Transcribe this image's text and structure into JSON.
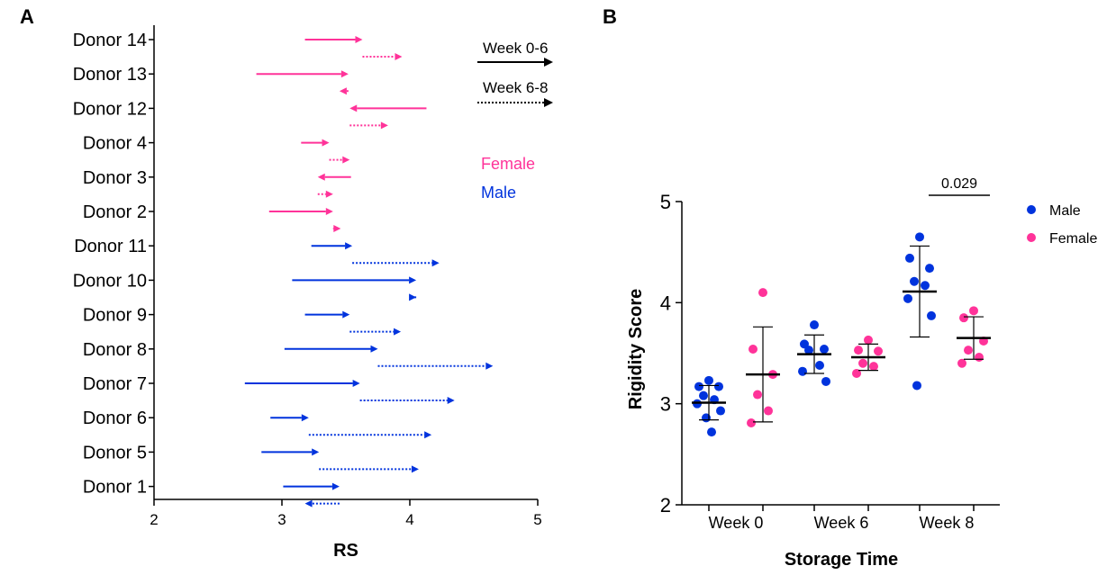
{
  "panels": {
    "a_letter": "A",
    "b_letter": "B"
  },
  "colors": {
    "female": "#ff3399",
    "male": "#0033dd",
    "black": "#000000"
  },
  "chart_data": [
    {
      "type": "arrow-plot",
      "xlabel": "RS",
      "xlim": [
        2,
        5
      ],
      "xticks": [
        "2",
        "3",
        "4",
        "5"
      ],
      "legend": {
        "arrow_solid": "Week 0-6",
        "arrow_dotted": "Week 6-8",
        "female": "Female",
        "male": "Male"
      },
      "donors": [
        {
          "name": "Donor 14",
          "sex": "female",
          "w0": 3.18,
          "w6": 3.63,
          "w8": 3.94
        },
        {
          "name": "Donor 13",
          "sex": "female",
          "w0": 2.8,
          "w6": 3.52,
          "w8": 3.45
        },
        {
          "name": "Donor 12",
          "sex": "female",
          "w0": 4.13,
          "w6": 3.53,
          "w8": 3.83
        },
        {
          "name": "Donor 4",
          "sex": "female",
          "w0": 3.15,
          "w6": 3.37,
          "w8": 3.53
        },
        {
          "name": "Donor 3",
          "sex": "female",
          "w0": 3.54,
          "w6": 3.28,
          "w8": 3.4
        },
        {
          "name": "Donor 2",
          "sex": "female",
          "w0": 2.9,
          "w6": 3.4,
          "w8": 3.46
        },
        {
          "name": "Donor 11",
          "sex": "male",
          "w0": 3.23,
          "w6": 3.55,
          "w8": 4.23
        },
        {
          "name": "Donor 10",
          "sex": "male",
          "w0": 3.08,
          "w6": 4.05,
          "w8": 4.05
        },
        {
          "name": "Donor 9",
          "sex": "male",
          "w0": 3.18,
          "w6": 3.53,
          "w8": 3.93
        },
        {
          "name": "Donor 8",
          "sex": "male",
          "w0": 3.02,
          "w6": 3.75,
          "w8": 4.65
        },
        {
          "name": "Donor 7",
          "sex": "male",
          "w0": 2.71,
          "w6": 3.61,
          "w8": 4.35
        },
        {
          "name": "Donor 6",
          "sex": "male",
          "w0": 2.91,
          "w6": 3.21,
          "w8": 4.17
        },
        {
          "name": "Donor 5",
          "sex": "male",
          "w0": 2.84,
          "w6": 3.29,
          "w8": 4.07
        },
        {
          "name": "Donor 1",
          "sex": "male",
          "w0": 3.01,
          "w6": 3.45,
          "w8": 3.18
        }
      ]
    },
    {
      "type": "scatter",
      "xlabel": "Storage Time",
      "ylabel": "Rigidity Score",
      "ylim": [
        2,
        5
      ],
      "yticks": [
        "2",
        "3",
        "4",
        "5"
      ],
      "categories": [
        "Week 0",
        "Week 6",
        "Week 8"
      ],
      "legend": {
        "position": "top-right"
      },
      "series": [
        {
          "name": "Male",
          "color": "#0033dd",
          "groups": [
            {
              "category": "Week 0",
              "values": [
                3.23,
                3.17,
                3.17,
                3.08,
                3.04,
                3.0,
                2.93,
                2.86,
                2.72
              ],
              "mean": 3.01,
              "sd": 0.17
            },
            {
              "category": "Week 6",
              "values": [
                3.78,
                3.59,
                3.54,
                3.53,
                3.38,
                3.32,
                3.22
              ],
              "mean": 3.49,
              "sd": 0.19
            },
            {
              "category": "Week 8",
              "values": [
                4.65,
                4.44,
                4.34,
                4.21,
                4.17,
                4.04,
                3.87,
                3.18
              ],
              "mean": 4.11,
              "sd": 0.45
            }
          ]
        },
        {
          "name": "Female",
          "color": "#ff3399",
          "groups": [
            {
              "category": "Week 0",
              "values": [
                4.1,
                3.54,
                3.29,
                3.09,
                2.93,
                2.81
              ],
              "mean": 3.29,
              "sd": 0.47
            },
            {
              "category": "Week 6",
              "values": [
                3.63,
                3.53,
                3.52,
                3.4,
                3.37,
                3.3
              ],
              "mean": 3.46,
              "sd": 0.13
            },
            {
              "category": "Week 8",
              "values": [
                3.92,
                3.85,
                3.62,
                3.53,
                3.46,
                3.4
              ],
              "mean": 3.65,
              "sd": 0.21
            }
          ]
        }
      ],
      "annotation": {
        "text": "0.029",
        "between": [
          "Week 8 Male",
          "Week 8 Female"
        ]
      }
    }
  ]
}
